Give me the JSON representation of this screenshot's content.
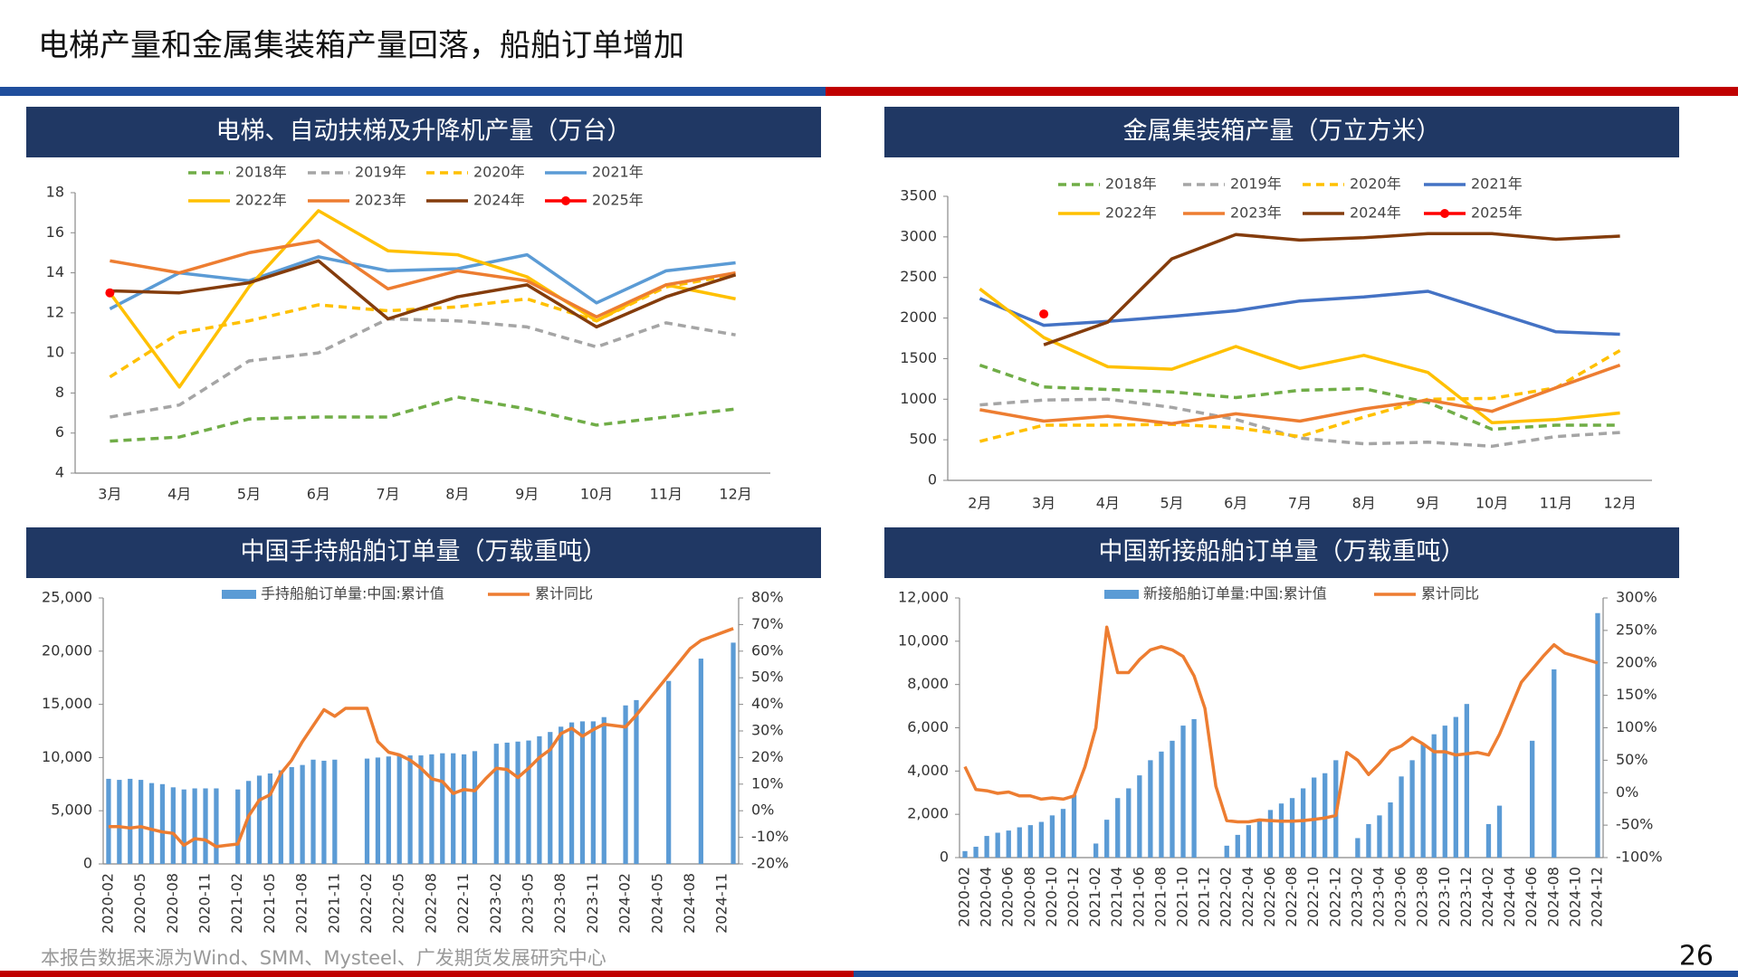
{
  "page": {
    "title": "电梯产量和金属集装箱产量回落，船舶订单增加",
    "source": "本报告数据来源为Wind、SMM、Mysteel、广发期货发展研究中心",
    "number": 26
  },
  "chart_data": [
    {
      "type": "line",
      "title": "电梯、自动扶梯及升降机产量（万台）",
      "categories": [
        "3月",
        "4月",
        "5月",
        "6月",
        "7月",
        "8月",
        "9月",
        "10月",
        "11月",
        "12月"
      ],
      "ylim": [
        4,
        18
      ],
      "yticks": [
        4,
        6,
        8,
        10,
        12,
        14,
        16,
        18
      ],
      "series": [
        {
          "name": "2018年",
          "color": "#70ad47",
          "dashed": true,
          "values": [
            5.6,
            5.8,
            6.7,
            6.8,
            6.8,
            7.8,
            7.2,
            6.4,
            6.8,
            7.2
          ]
        },
        {
          "name": "2019年",
          "color": "#a5a5a5",
          "dashed": true,
          "values": [
            6.8,
            7.4,
            9.6,
            10.0,
            11.7,
            11.6,
            11.3,
            10.3,
            11.5,
            10.9
          ]
        },
        {
          "name": "2020年",
          "color": "#ffc000",
          "dashed": true,
          "values": [
            8.8,
            11.0,
            11.6,
            12.4,
            12.1,
            12.3,
            12.7,
            11.6,
            13.3,
            13.9
          ]
        },
        {
          "name": "2021年",
          "color": "#5b9bd5",
          "values": [
            12.2,
            14.0,
            13.6,
            14.8,
            14.1,
            14.2,
            14.9,
            12.5,
            14.1,
            14.5
          ]
        },
        {
          "name": "2022年",
          "color": "#ffc000",
          "values": [
            13.0,
            8.3,
            13.3,
            17.1,
            15.1,
            14.9,
            13.8,
            11.6,
            13.4,
            12.7
          ]
        },
        {
          "name": "2023年",
          "color": "#ed7d31",
          "values": [
            14.6,
            14.0,
            15.0,
            15.6,
            13.2,
            14.1,
            13.6,
            11.8,
            13.4,
            14.0
          ]
        },
        {
          "name": "2024年",
          "color": "#843c0c",
          "values": [
            13.1,
            13.0,
            13.5,
            14.6,
            11.7,
            12.8,
            13.4,
            11.3,
            12.8,
            13.9
          ]
        },
        {
          "name": "2025年",
          "color": "#ff0000",
          "marker": true,
          "values": [
            13.0,
            null,
            null,
            null,
            null,
            null,
            null,
            null,
            null,
            null
          ]
        }
      ]
    },
    {
      "type": "line",
      "title": "金属集装箱产量（万立方米）",
      "categories": [
        "2月",
        "3月",
        "4月",
        "5月",
        "6月",
        "7月",
        "8月",
        "9月",
        "10月",
        "11月",
        "12月"
      ],
      "ylim": [
        0,
        3500
      ],
      "yticks": [
        0,
        500,
        1000,
        1500,
        2000,
        2500,
        3000,
        3500
      ],
      "series": [
        {
          "name": "2018年",
          "color": "#70ad47",
          "dashed": true,
          "values": [
            1420,
            1150,
            1120,
            1090,
            1020,
            1110,
            1130,
            960,
            630,
            680,
            680
          ]
        },
        {
          "name": "2019年",
          "color": "#a5a5a5",
          "dashed": true,
          "values": [
            930,
            990,
            1000,
            900,
            750,
            520,
            450,
            470,
            420,
            540,
            590
          ]
        },
        {
          "name": "2020年",
          "color": "#ffc000",
          "dashed": true,
          "values": [
            480,
            680,
            680,
            690,
            650,
            540,
            780,
            1000,
            1010,
            1140,
            1600
          ]
        },
        {
          "name": "2021年",
          "color": "#4472c4",
          "values": [
            2240,
            1910,
            1960,
            2020,
            2090,
            2210,
            2260,
            2330,
            2080,
            1830,
            1800
          ]
        },
        {
          "name": "2022年",
          "color": "#ffc000",
          "values": [
            2360,
            1760,
            1400,
            1370,
            1650,
            1380,
            1540,
            1330,
            710,
            750,
            830
          ]
        },
        {
          "name": "2023年",
          "color": "#ed7d31",
          "values": [
            870,
            730,
            790,
            700,
            820,
            730,
            880,
            990,
            850,
            1140,
            1420
          ]
        },
        {
          "name": "2024年",
          "color": "#843c0c",
          "values": [
            null,
            1670,
            1950,
            2730,
            3030,
            2960,
            2990,
            3040,
            3040,
            2970,
            3010
          ]
        },
        {
          "name": "2025年",
          "color": "#ff0000",
          "marker": true,
          "values": [
            null,
            2050,
            null,
            null,
            null,
            null,
            null,
            null,
            null,
            null,
            null
          ]
        }
      ]
    },
    {
      "type": "combo",
      "title": "中国手持船舶订单量（万载重吨）",
      "categories": [
        "2020-02",
        null,
        null,
        "2020-05",
        null,
        null,
        "2020-08",
        null,
        null,
        "2020-11",
        null,
        null,
        "2021-02",
        null,
        null,
        "2021-05",
        null,
        null,
        "2021-08",
        null,
        null,
        "2021-11",
        null,
        null,
        "2022-02",
        null,
        null,
        "2022-05",
        null,
        null,
        "2022-08",
        null,
        null,
        "2022-11",
        null,
        null,
        "2023-02",
        null,
        null,
        "2023-05",
        null,
        null,
        "2023-08",
        null,
        null,
        "2023-11",
        null,
        null,
        "2024-02",
        null,
        null,
        "2024-05",
        null,
        null,
        "2024-08",
        null,
        null,
        "2024-11",
        null
      ],
      "ylim": [
        0,
        25000
      ],
      "yticks": [
        0,
        {
          "value": 5000,
          "label": "5,000"
        },
        {
          "value": 10000,
          "label": "10,000"
        },
        {
          "value": 15000,
          "label": "15,000"
        },
        {
          "value": 20000,
          "label": "20,000"
        },
        {
          "value": 25000,
          "label": "25,000"
        }
      ],
      "y2lim": [
        -20,
        80
      ],
      "y2ticks": [
        {
          "value": -20,
          "label": "-20%"
        },
        {
          "value": -10,
          "label": "-10%"
        },
        {
          "value": 0,
          "label": "0%"
        },
        {
          "value": 10,
          "label": "10%"
        },
        {
          "value": 20,
          "label": "20%"
        },
        {
          "value": 30,
          "label": "30%"
        },
        {
          "value": 40,
          "label": "40%"
        },
        {
          "value": 50,
          "label": "50%"
        },
        {
          "value": 60,
          "label": "60%"
        },
        {
          "value": 70,
          "label": "70%"
        },
        {
          "value": 80,
          "label": "80%"
        }
      ],
      "series": [
        {
          "name": "手持船舶订单量:中国:累计值",
          "kind": "bar",
          "color": "#5b9bd5",
          "values": [
            8000,
            7900,
            8000,
            7900,
            7600,
            7500,
            7200,
            7000,
            7100,
            7100,
            7100,
            null,
            7000,
            7800,
            8300,
            8500,
            8800,
            9100,
            9300,
            9800,
            9700,
            9800,
            null,
            null,
            9900,
            10000,
            10100,
            10300,
            10200,
            10200,
            10300,
            10400,
            10400,
            10300,
            10600,
            null,
            11300,
            11400,
            11500,
            11600,
            12000,
            12400,
            12900,
            13300,
            13400,
            13400,
            13800,
            null,
            14900,
            15400,
            null,
            null,
            17200,
            null,
            null,
            19300,
            null,
            null,
            20800
          ]
        },
        {
          "name": "累计同比",
          "kind": "line",
          "axis": "y2",
          "color": "#ed7d31",
          "values": [
            -6,
            -6,
            -6.5,
            -6,
            -7,
            -8,
            -8.5,
            -13,
            -10.5,
            -11,
            -13.5,
            -13,
            -12.5,
            -2,
            4,
            6,
            14,
            19,
            26,
            32,
            38,
            35.5,
            38.5,
            38.5,
            38.5,
            26,
            22,
            21,
            19,
            16,
            12,
            11,
            6.5,
            8,
            7.5,
            12,
            16,
            15.5,
            12.5,
            16,
            20,
            23,
            29,
            31,
            28,
            30.5,
            32.5,
            32,
            31.5,
            36,
            41,
            46,
            51,
            56,
            61,
            64,
            65.5,
            67,
            68.5
          ]
        }
      ]
    },
    {
      "type": "combo",
      "title": "中国新接船舶订单量（万载重吨）",
      "categories": [
        "2020-02",
        null,
        "2020-04",
        null,
        "2020-06",
        null,
        "2020-08",
        null,
        "2020-10",
        null,
        "2020-12",
        null,
        "2021-02",
        null,
        "2021-04",
        null,
        "2021-06",
        null,
        "2021-08",
        null,
        "2021-10",
        null,
        "2021-12",
        null,
        "2022-02",
        null,
        "2022-04",
        null,
        "2022-06",
        null,
        "2022-08",
        null,
        "2022-10",
        null,
        "2022-12",
        null,
        "2023-02",
        null,
        "2023-04",
        null,
        "2023-06",
        null,
        "2023-08",
        null,
        "2023-10",
        null,
        "2023-12",
        null,
        "2024-02",
        null,
        "2024-04",
        null,
        "2024-06",
        null,
        "2024-08",
        null,
        "2024-10",
        null,
        "2024-12"
      ],
      "ylim": [
        0,
        12000
      ],
      "yticks": [
        0,
        {
          "value": 2000,
          "label": "2,000"
        },
        {
          "value": 4000,
          "label": "4,000"
        },
        {
          "value": 6000,
          "label": "6,000"
        },
        {
          "value": 8000,
          "label": "8,000"
        },
        {
          "value": 10000,
          "label": "10,000"
        },
        {
          "value": 12000,
          "label": "12,000"
        }
      ],
      "y2lim": [
        -100,
        300
      ],
      "y2ticks": [
        {
          "value": -100,
          "label": "-100%"
        },
        {
          "value": -50,
          "label": "-50%"
        },
        {
          "value": 0,
          "label": "0%"
        },
        {
          "value": 50,
          "label": "50%"
        },
        {
          "value": 100,
          "label": "100%"
        },
        {
          "value": 150,
          "label": "150%"
        },
        {
          "value": 200,
          "label": "200%"
        },
        {
          "value": 250,
          "label": "250%"
        },
        {
          "value": 300,
          "label": "300%"
        }
      ],
      "series": [
        {
          "name": "新接船舶订单量:中国:累计值",
          "kind": "bar",
          "color": "#5b9bd5",
          "values": [
            300,
            500,
            1000,
            1150,
            1250,
            1400,
            1500,
            1650,
            1950,
            2250,
            2900,
            null,
            650,
            1750,
            2750,
            3200,
            3800,
            4500,
            4900,
            5400,
            6100,
            6400,
            null,
            null,
            550,
            1050,
            1500,
            1800,
            2200,
            2500,
            2750,
            3200,
            3700,
            3900,
            4500,
            null,
            900,
            1550,
            1950,
            2550,
            3750,
            4500,
            5250,
            5700,
            6100,
            6500,
            7100,
            null,
            1550,
            2400,
            null,
            null,
            5400,
            null,
            8700,
            null,
            null,
            null,
            11300
          ]
        },
        {
          "name": "累计同比",
          "kind": "line",
          "axis": "y2",
          "color": "#ed7d31",
          "values": [
            40,
            5,
            3,
            -1,
            1,
            -5,
            -5,
            -10,
            -8,
            -10,
            -5,
            40,
            100,
            255,
            185,
            185,
            205,
            220,
            225,
            220,
            210,
            180,
            130,
            10,
            -43,
            -45,
            -45,
            -42,
            -43,
            -44,
            -44,
            -43,
            -41,
            -39,
            -35,
            62,
            50,
            28,
            45,
            65,
            72,
            85,
            75,
            63,
            63,
            58,
            60,
            62,
            58,
            90,
            130,
            170,
            190,
            210,
            228,
            215,
            210,
            205,
            200
          ]
        }
      ]
    }
  ]
}
